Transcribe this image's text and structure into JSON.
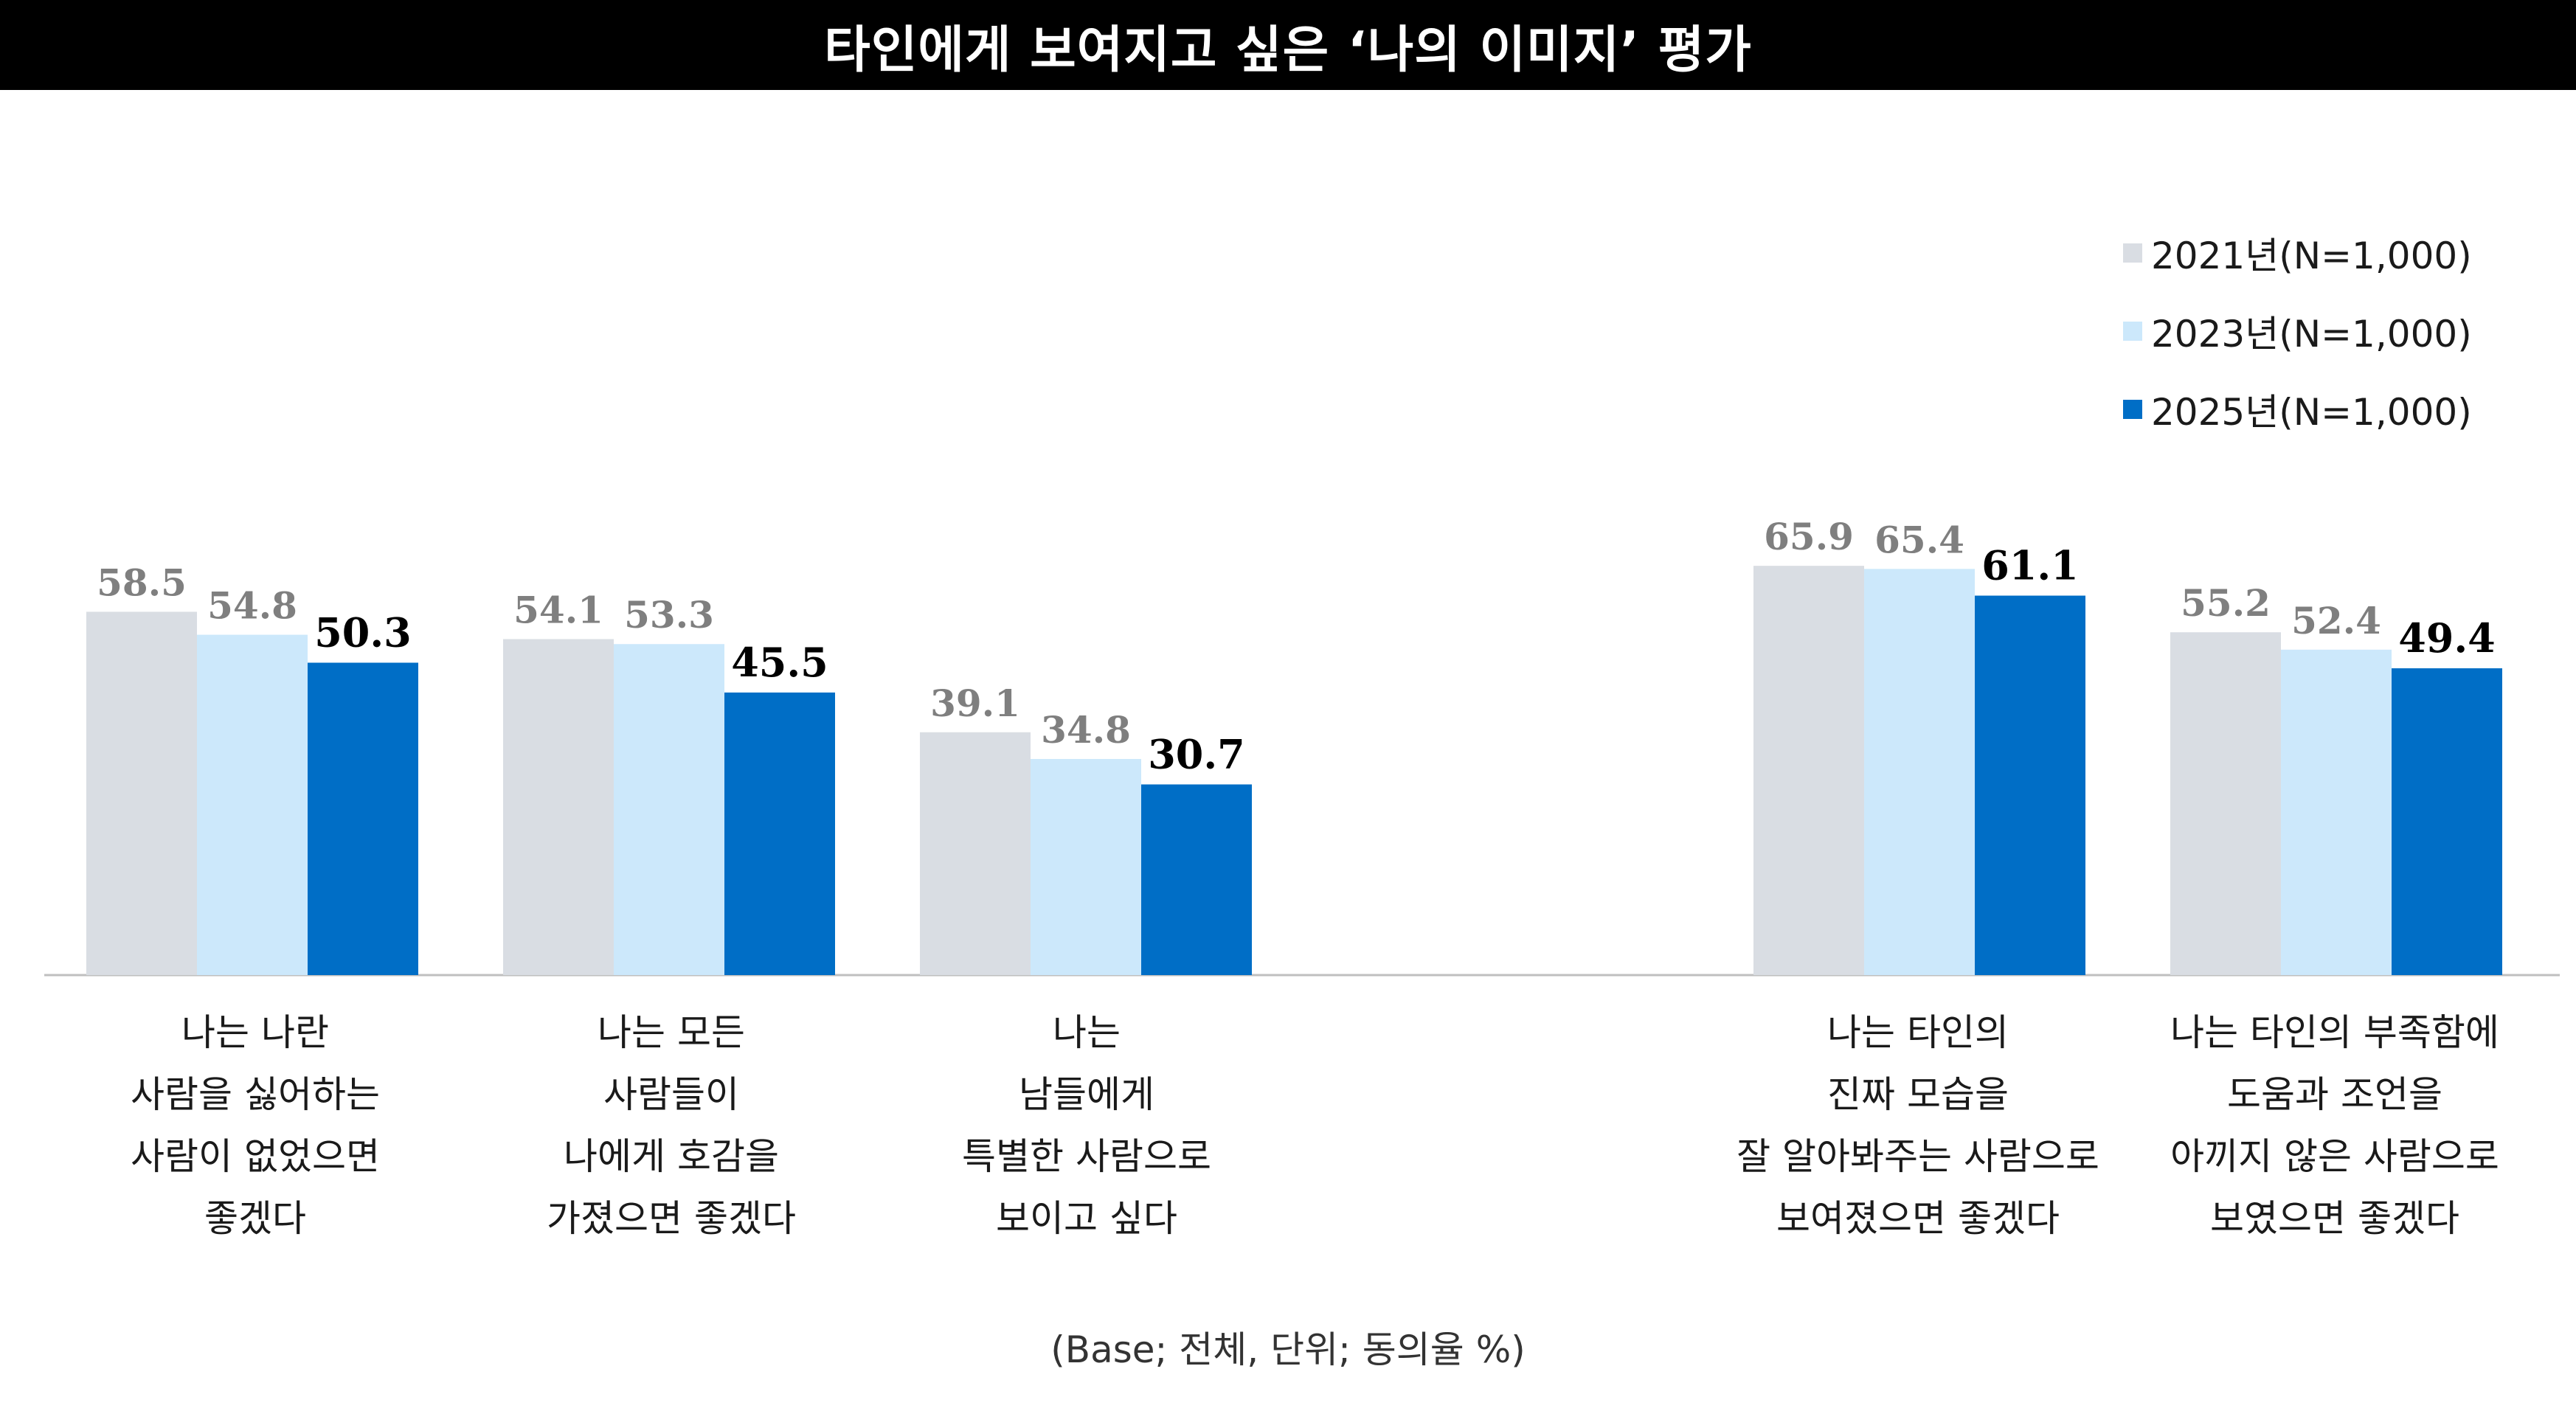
{
  "title": "타인에게 보여지고 싶은 ‘나의 이미지’ 평가",
  "footnote": "(Base; 전체, 단위; 동의율 %)",
  "colors": {
    "series_2021": "#d9dde3",
    "series_2023": "#cce8fb",
    "series_2025": "#006ec6",
    "label_old": "#7f7f7f",
    "label_new": "#000000"
  },
  "chart_data": {
    "type": "bar",
    "title": "타인에게 보여지고 싶은 ‘나의 이미지’ 평가",
    "categories": [
      "나는 나란\n사람을 싫어하는\n사람이 없었으면\n좋겠다",
      "나는 모든\n사람들이\n나에게 호감을\n가졌으면 좋겠다",
      "나는\n남들에게\n특별한 사람으로\n보이고 싶다",
      "나는 타인의\n진짜 모습을\n잘 알아봐주는 사람으로\n보여졌으면 좋겠다",
      "나는 타인의 부족함에\n도움과 조언을\n아끼지 않은 사람으로\n보였으면 좋겠다"
    ],
    "series": [
      {
        "name": "2021년(N=1,000)",
        "values": [
          58.5,
          54.1,
          39.1,
          65.9,
          55.2
        ]
      },
      {
        "name": "2023년(N=1,000)",
        "values": [
          54.8,
          53.3,
          34.8,
          65.4,
          52.4
        ]
      },
      {
        "name": "2025년(N=1,000)",
        "values": [
          50.3,
          45.5,
          30.7,
          61.1,
          49.4
        ]
      }
    ],
    "ylim": [
      0,
      100
    ],
    "grid": false,
    "legend_position": "top-right",
    "unit": "%"
  }
}
